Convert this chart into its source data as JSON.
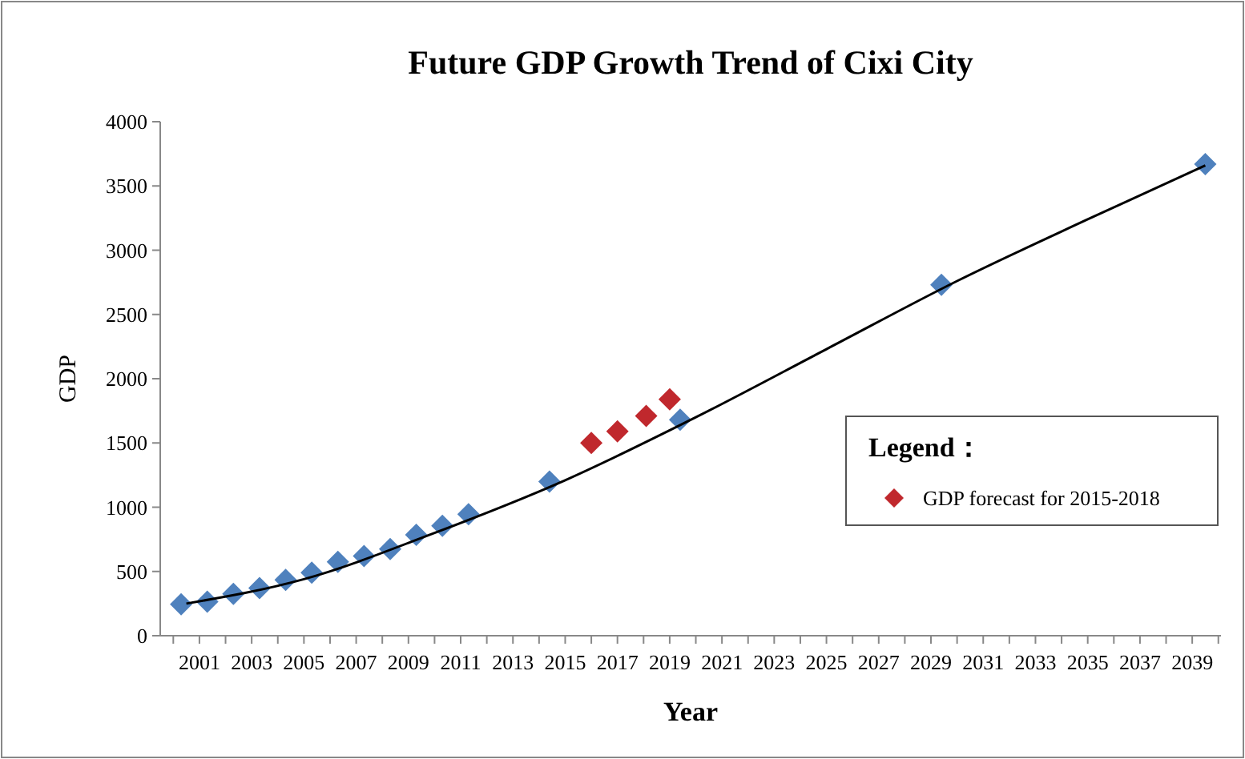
{
  "chart_data": {
    "type": "scatter",
    "title": "Future GDP Growth Trend of Cixi City",
    "xlabel": "Year",
    "ylabel": "GDP",
    "xlim": [
      1999.5,
      2040.1
    ],
    "xticks": [
      2001,
      2003,
      2005,
      2007,
      2009,
      2011,
      2013,
      2015,
      2017,
      2019,
      2021,
      2023,
      2025,
      2027,
      2029,
      2031,
      2033,
      2035,
      2037,
      2039
    ],
    "ylim": [
      0,
      4000
    ],
    "yticks": [
      0,
      500,
      1000,
      1500,
      2000,
      2500,
      3000,
      3500,
      4000
    ],
    "grid": false,
    "legend": "right",
    "legend_title": "Legend：",
    "marker": "diamond",
    "series": [
      {
        "color": "#4f81bd",
        "x": [
          2000.3,
          2001.3,
          2002.3,
          2003.3,
          2004.3,
          2005.3,
          2006.3,
          2007.3,
          2008.3,
          2009.3,
          2010.3,
          2011.3,
          2014.4,
          2019.4,
          2029.4,
          2039.5
        ],
        "values": [
          245,
          265,
          325,
          370,
          435,
          490,
          575,
          620,
          675,
          785,
          855,
          945,
          1200,
          1680,
          2730,
          3670
        ]
      },
      {
        "name": "GDP forecast for 2015-2018",
        "color": "#c0282d",
        "x": [
          2016.0,
          2017.0,
          2018.1,
          2019.0
        ],
        "values": [
          1500,
          1590,
          1710,
          1840
        ]
      },
      {
        "type": "line",
        "color": "#000000",
        "marker": "none",
        "x": [
          2000.5,
          2005,
          2010,
          2015,
          2020,
          2025,
          2030,
          2035,
          2039.5
        ],
        "values": [
          250,
          440,
          800,
          1210,
          1700,
          2230,
          2760,
          3240,
          3660
        ]
      }
    ]
  }
}
